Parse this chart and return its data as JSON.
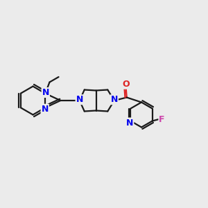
{
  "bg_color": "#ebebeb",
  "bond_color": "#1a1a1a",
  "N_color": "#0000ee",
  "O_color": "#dd2222",
  "F_color": "#cc44aa",
  "line_width": 1.6,
  "figsize": [
    3.0,
    3.0
  ],
  "dpi": 100,
  "xlim": [
    0,
    12
  ],
  "ylim": [
    0,
    10
  ]
}
